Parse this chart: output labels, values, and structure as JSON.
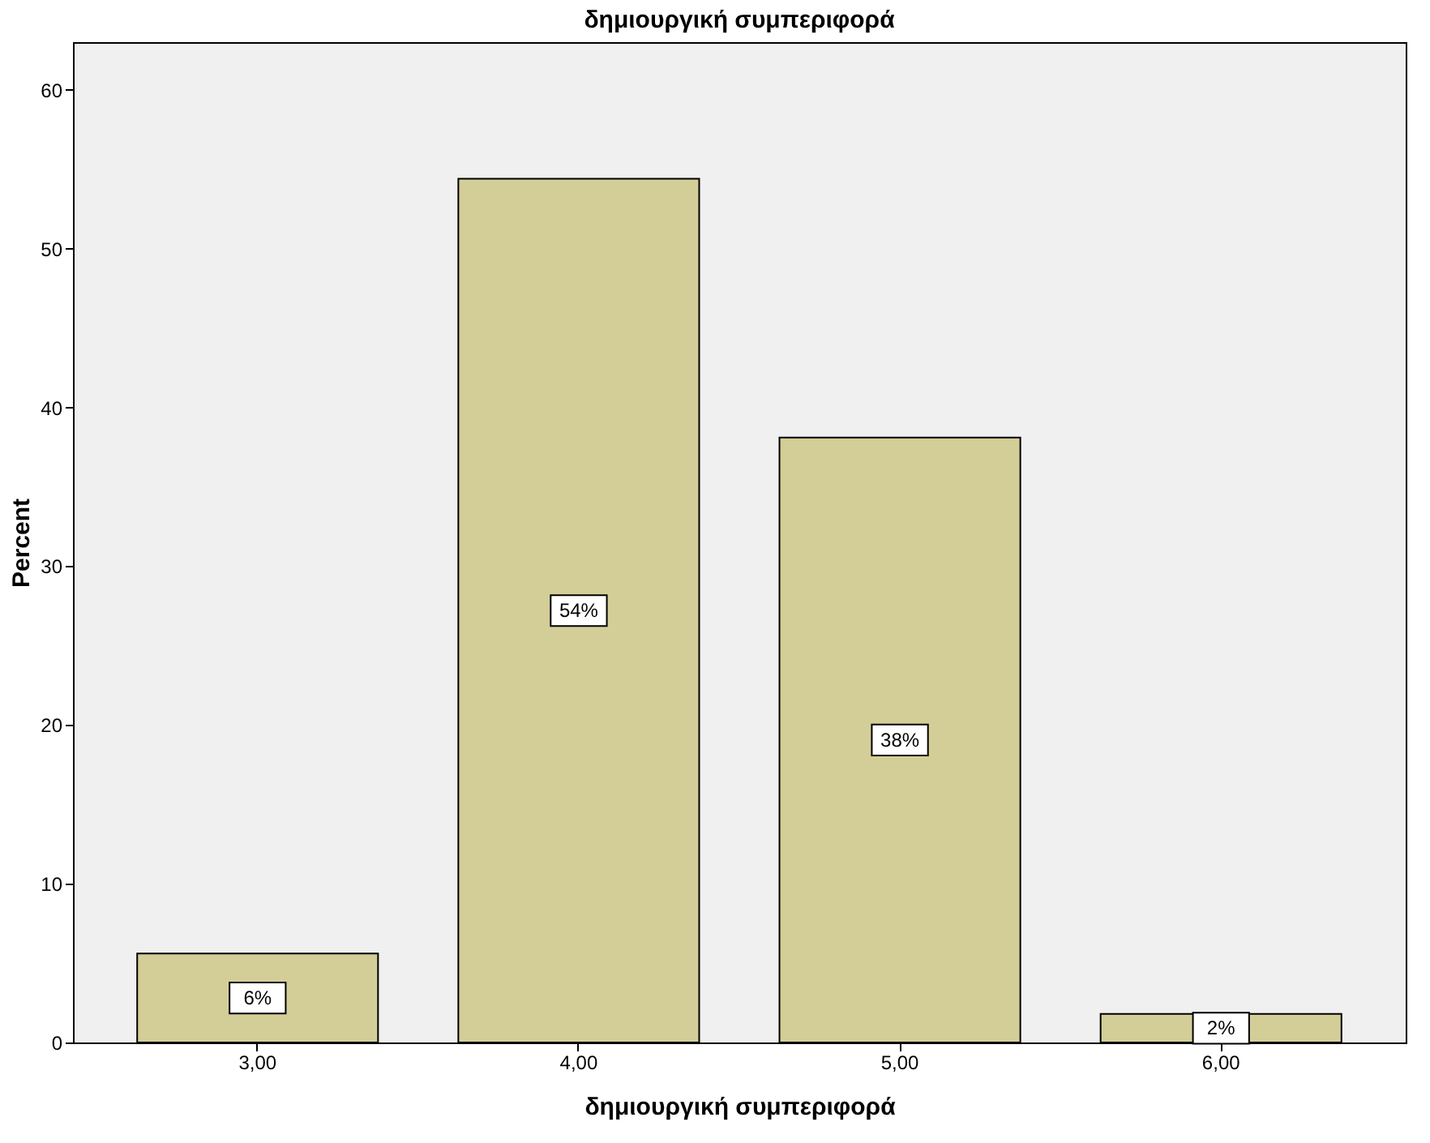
{
  "chart_data": {
    "type": "bar",
    "title": "δημιουργική συμπεριφορά",
    "xlabel": "δημιουργική συμπεριφορά",
    "ylabel": "Percent",
    "categories": [
      "3,00",
      "4,00",
      "5,00",
      "6,00"
    ],
    "values": [
      5.6,
      54.4,
      38.1,
      1.8
    ],
    "value_labels": [
      "6%",
      "54%",
      "38%",
      "2%"
    ],
    "color": "#d3ce97",
    "ylim": [
      0,
      63
    ],
    "yticks": [
      0,
      10,
      20,
      30,
      40,
      50,
      60
    ],
    "grid": false
  }
}
